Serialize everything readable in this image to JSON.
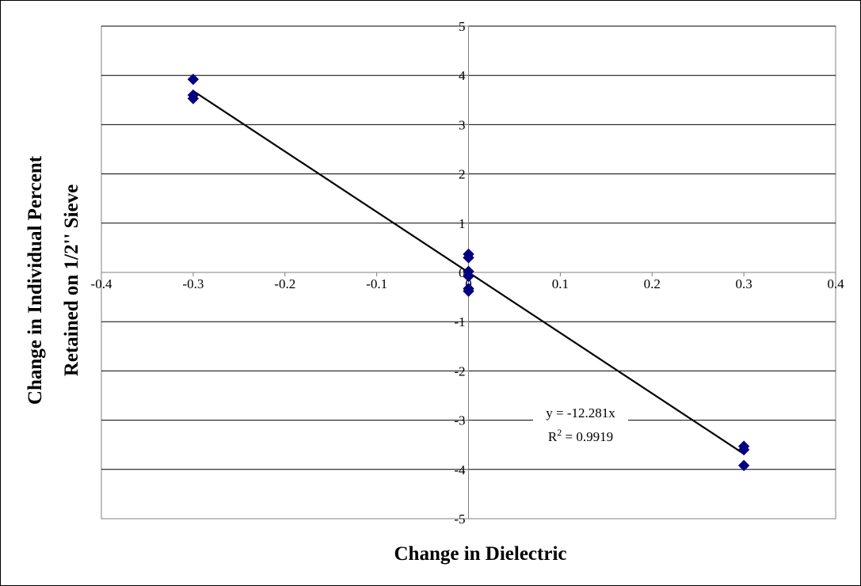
{
  "chart_data": {
    "type": "scatter",
    "title": "",
    "xlabel": "Change in Dielectric",
    "ylabel_lines": [
      "Change in Individual Percent",
      "Retained on 1/2'' Sieve"
    ],
    "xlim": [
      -0.4,
      0.4
    ],
    "ylim": [
      -5,
      5
    ],
    "x_ticks": [
      -0.4,
      -0.3,
      -0.2,
      -0.1,
      0,
      0.1,
      0.2,
      0.3,
      0.4
    ],
    "x_tick_labels": [
      "-0.4",
      "-0.3",
      "-0.2",
      "-0.1",
      "0",
      "0.1",
      "0.2",
      "0.3",
      "0.4"
    ],
    "y_ticks": [
      -5,
      -4,
      -3,
      -2,
      -1,
      0,
      1,
      2,
      3,
      4,
      5
    ],
    "y_tick_labels": [
      "-5",
      "-4",
      "-3",
      "-2",
      "-1",
      "0",
      "1",
      "2",
      "3",
      "4",
      "5"
    ],
    "grid": "horizontal",
    "legend": "none",
    "series": [
      {
        "marker": "diamond",
        "color": "#000080",
        "points": [
          {
            "x": -0.3,
            "y": 3.92
          },
          {
            "x": -0.3,
            "y": 3.6
          },
          {
            "x": -0.3,
            "y": 3.53
          },
          {
            "x": 0.0,
            "y": 0.37
          },
          {
            "x": 0.0,
            "y": 0.3
          },
          {
            "x": 0.0,
            "y": 0.02
          },
          {
            "x": 0.0,
            "y": -0.08
          },
          {
            "x": 0.0,
            "y": -0.33
          },
          {
            "x": 0.0,
            "y": -0.38
          },
          {
            "x": 0.3,
            "y": -3.53
          },
          {
            "x": 0.3,
            "y": -3.6
          },
          {
            "x": 0.3,
            "y": -3.92
          }
        ]
      }
    ],
    "trendline": {
      "slope": -12.281,
      "x_range": [
        -0.3,
        0.3
      ],
      "color": "#000000",
      "equation": "y = -12.281x",
      "r2_prefix": "R",
      "r2_sup": "2",
      "r2_suffix": " = 0.9919"
    }
  }
}
